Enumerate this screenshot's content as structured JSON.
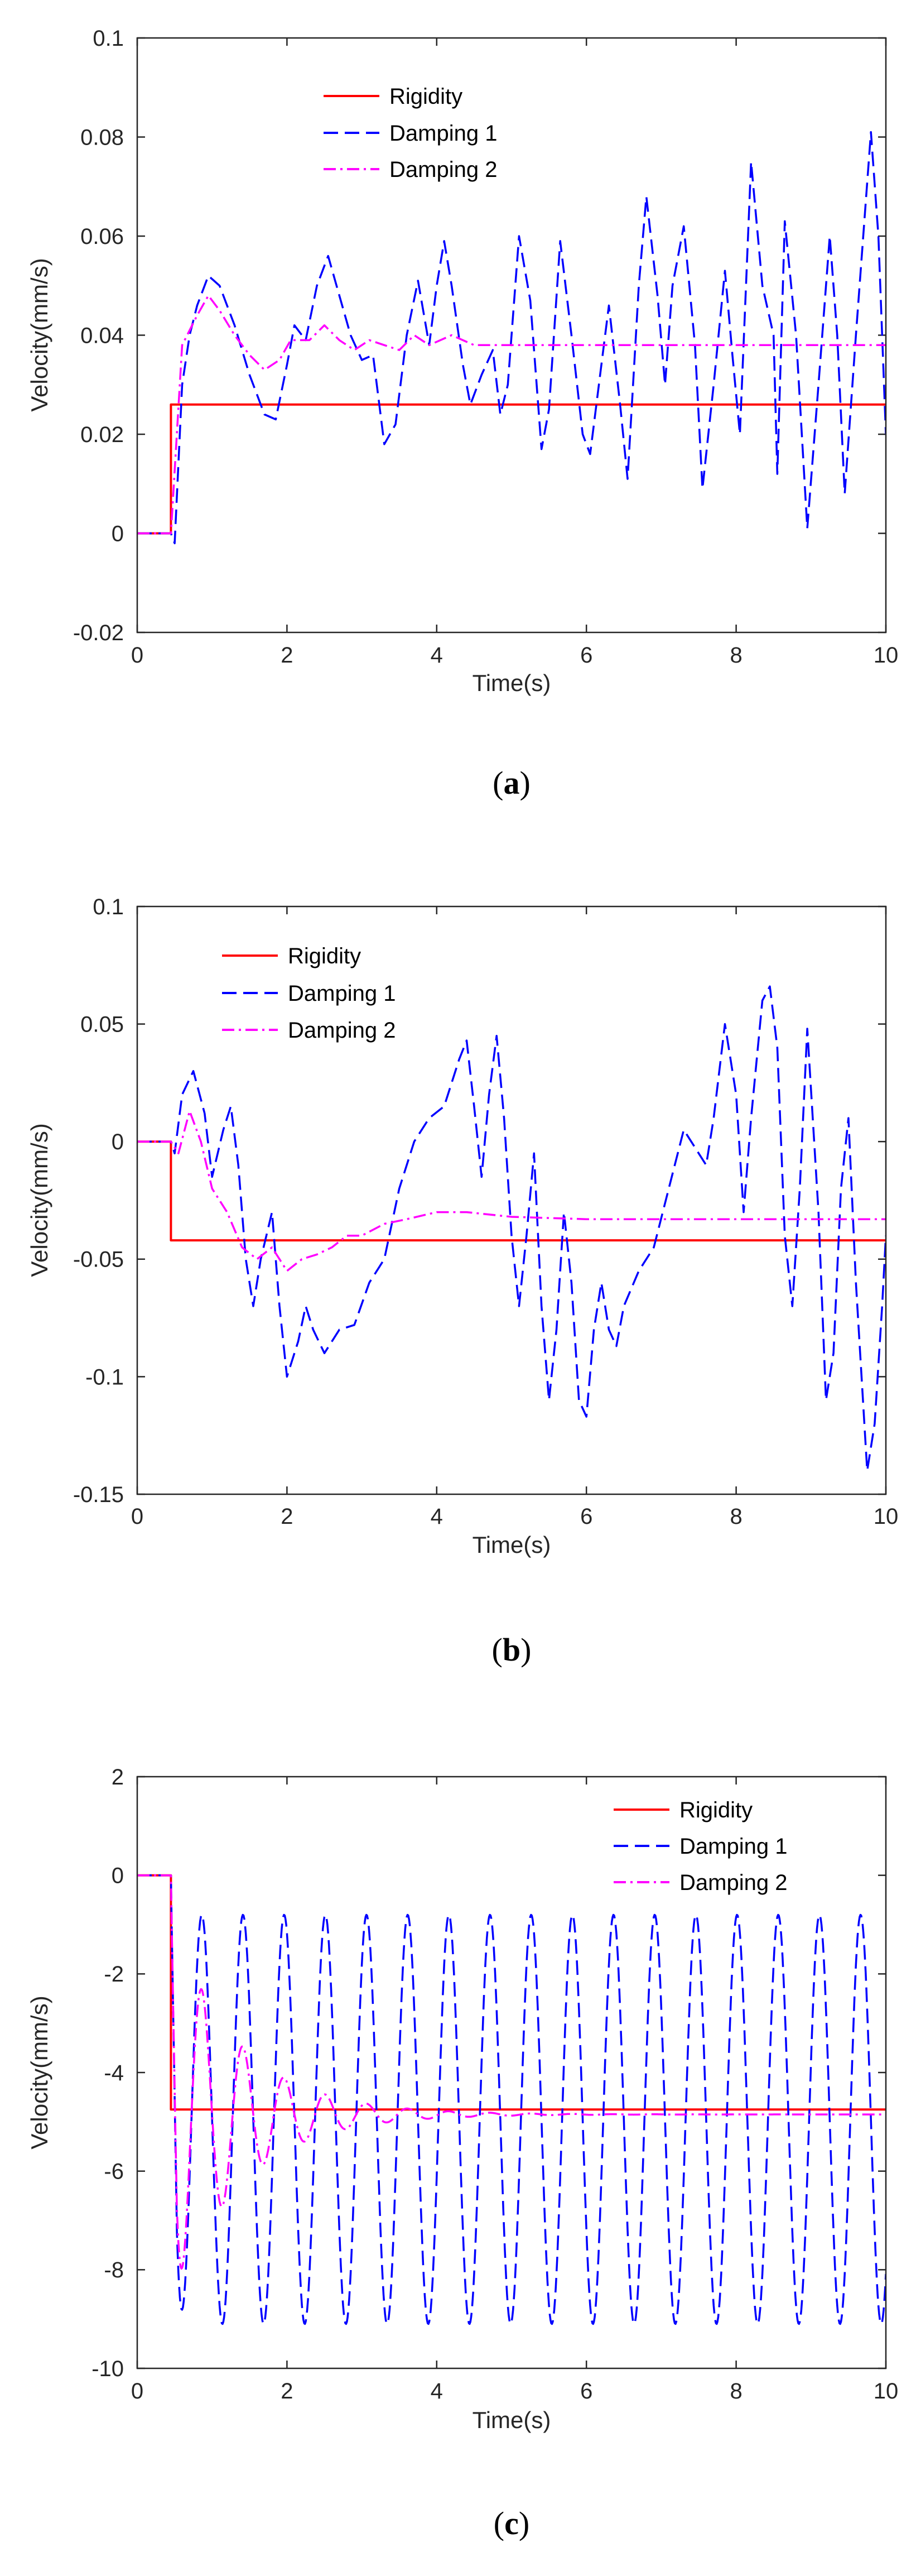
{
  "colors": {
    "rigidity": "#ff0000",
    "damping1": "#0000ff",
    "damping2": "#ff00ff",
    "axis": "#262626"
  },
  "chart_data": [
    {
      "type": "line",
      "caption": "a",
      "xlabel": "Time(s)",
      "ylabel": "Velocity(mm/s)",
      "xlim": [
        0,
        10
      ],
      "ylim": [
        -0.02,
        0.1
      ],
      "xticks": [
        0,
        2,
        4,
        6,
        8,
        10
      ],
      "yticks": [
        -0.02,
        0,
        0.02,
        0.04,
        0.06,
        0.08,
        0.1
      ],
      "xtick_labels": [
        "0",
        "2",
        "4",
        "6",
        "8",
        "10"
      ],
      "ytick_labels": [
        "-0.02",
        "0",
        "0.02",
        "0.04",
        "0.06",
        "0.08",
        "0.1"
      ],
      "legend_position": "top-left",
      "series": [
        {
          "name": "Rigidity",
          "style": "solid",
          "color_key": "rigidity",
          "points": [
            [
              0,
              0
            ],
            [
              0.45,
              0
            ],
            [
              0.45,
              0.026
            ],
            [
              10,
              0.026
            ]
          ]
        },
        {
          "name": "Damping 1",
          "style": "dashed",
          "color_key": "damping1",
          "points": [
            [
              0,
              0
            ],
            [
              0.45,
              0
            ],
            [
              0.5,
              -0.002
            ],
            [
              0.6,
              0.03
            ],
            [
              0.7,
              0.04
            ],
            [
              0.8,
              0.046
            ],
            [
              0.95,
              0.052
            ],
            [
              1.1,
              0.05
            ],
            [
              1.3,
              0.042
            ],
            [
              1.5,
              0.032
            ],
            [
              1.7,
              0.024
            ],
            [
              1.85,
              0.023
            ],
            [
              2.0,
              0.034
            ],
            [
              2.1,
              0.042
            ],
            [
              2.25,
              0.039
            ],
            [
              2.4,
              0.05
            ],
            [
              2.55,
              0.056
            ],
            [
              2.7,
              0.048
            ],
            [
              2.85,
              0.04
            ],
            [
              3.0,
              0.035
            ],
            [
              3.15,
              0.036
            ],
            [
              3.3,
              0.018
            ],
            [
              3.45,
              0.022
            ],
            [
              3.6,
              0.04
            ],
            [
              3.75,
              0.051
            ],
            [
              3.9,
              0.038
            ],
            [
              4.0,
              0.05
            ],
            [
              4.1,
              0.059
            ],
            [
              4.2,
              0.05
            ],
            [
              4.35,
              0.034
            ],
            [
              4.45,
              0.026
            ],
            [
              4.6,
              0.032
            ],
            [
              4.75,
              0.037
            ],
            [
              4.85,
              0.024
            ],
            [
              4.95,
              0.03
            ],
            [
              5.1,
              0.06
            ],
            [
              5.25,
              0.047
            ],
            [
              5.4,
              0.017
            ],
            [
              5.5,
              0.025
            ],
            [
              5.65,
              0.059
            ],
            [
              5.8,
              0.04
            ],
            [
              5.95,
              0.02
            ],
            [
              6.05,
              0.016
            ],
            [
              6.2,
              0.034
            ],
            [
              6.3,
              0.046
            ],
            [
              6.45,
              0.026
            ],
            [
              6.55,
              0.011
            ],
            [
              6.7,
              0.05
            ],
            [
              6.8,
              0.068
            ],
            [
              6.95,
              0.048
            ],
            [
              7.05,
              0.03
            ],
            [
              7.15,
              0.05
            ],
            [
              7.3,
              0.062
            ],
            [
              7.45,
              0.038
            ],
            [
              7.55,
              0.009
            ],
            [
              7.7,
              0.03
            ],
            [
              7.85,
              0.053
            ],
            [
              7.95,
              0.036
            ],
            [
              8.05,
              0.02
            ],
            [
              8.2,
              0.075
            ],
            [
              8.35,
              0.05
            ],
            [
              8.5,
              0.04
            ],
            [
              8.55,
              0.012
            ],
            [
              8.65,
              0.063
            ],
            [
              8.8,
              0.04
            ],
            [
              8.95,
              0.001
            ],
            [
              9.1,
              0.03
            ],
            [
              9.25,
              0.06
            ],
            [
              9.35,
              0.04
            ],
            [
              9.45,
              0.008
            ],
            [
              9.6,
              0.04
            ],
            [
              9.8,
              0.081
            ],
            [
              9.9,
              0.06
            ],
            [
              10,
              0.02
            ]
          ]
        },
        {
          "name": "Damping 2",
          "style": "dashdot",
          "color_key": "damping2",
          "points": [
            [
              0,
              0
            ],
            [
              0.45,
              0
            ],
            [
              0.6,
              0.038
            ],
            [
              0.8,
              0.044
            ],
            [
              0.95,
              0.048
            ],
            [
              1.1,
              0.045
            ],
            [
              1.3,
              0.04
            ],
            [
              1.5,
              0.036
            ],
            [
              1.7,
              0.033
            ],
            [
              1.9,
              0.035
            ],
            [
              2.05,
              0.039
            ],
            [
              2.3,
              0.039
            ],
            [
              2.5,
              0.042
            ],
            [
              2.7,
              0.039
            ],
            [
              2.9,
              0.037
            ],
            [
              3.1,
              0.039
            ],
            [
              3.3,
              0.038
            ],
            [
              3.5,
              0.037
            ],
            [
              3.7,
              0.04
            ],
            [
              3.9,
              0.038
            ],
            [
              4.2,
              0.04
            ],
            [
              4.5,
              0.038
            ],
            [
              5.0,
              0.038
            ],
            [
              6.0,
              0.038
            ],
            [
              7.0,
              0.038
            ],
            [
              8.0,
              0.038
            ],
            [
              9.0,
              0.038
            ],
            [
              10,
              0.038
            ]
          ]
        }
      ]
    },
    {
      "type": "line",
      "caption": "b",
      "xlabel": "Time(s)",
      "ylabel": "Velocity(mm/s)",
      "xlim": [
        0,
        10
      ],
      "ylim": [
        -0.15,
        0.1
      ],
      "xticks": [
        0,
        2,
        4,
        6,
        8,
        10
      ],
      "yticks": [
        -0.15,
        -0.1,
        -0.05,
        0,
        0.05,
        0.1
      ],
      "xtick_labels": [
        "0",
        "2",
        "4",
        "6",
        "8",
        "10"
      ],
      "ytick_labels": [
        "-0.15",
        "-0.1",
        "-0.05",
        "0",
        "0.05",
        "0.1"
      ],
      "legend_position": "top-left",
      "series": [
        {
          "name": "Rigidity",
          "style": "solid",
          "color_key": "rigidity",
          "points": [
            [
              0,
              0
            ],
            [
              0.45,
              0
            ],
            [
              0.45,
              -0.042
            ],
            [
              10,
              -0.042
            ]
          ]
        },
        {
          "name": "Damping 1",
          "style": "dashed",
          "color_key": "damping1",
          "points": [
            [
              0,
              0
            ],
            [
              0.45,
              0
            ],
            [
              0.5,
              -0.005
            ],
            [
              0.6,
              0.02
            ],
            [
              0.75,
              0.03
            ],
            [
              0.9,
              0.012
            ],
            [
              1.0,
              -0.015
            ],
            [
              1.15,
              0.005
            ],
            [
              1.25,
              0.015
            ],
            [
              1.35,
              -0.01
            ],
            [
              1.45,
              -0.05
            ],
            [
              1.55,
              -0.07
            ],
            [
              1.65,
              -0.05
            ],
            [
              1.8,
              -0.03
            ],
            [
              1.9,
              -0.07
            ],
            [
              2.0,
              -0.1
            ],
            [
              2.15,
              -0.085
            ],
            [
              2.25,
              -0.07
            ],
            [
              2.35,
              -0.08
            ],
            [
              2.5,
              -0.09
            ],
            [
              2.7,
              -0.08
            ],
            [
              2.9,
              -0.078
            ],
            [
              3.1,
              -0.06
            ],
            [
              3.3,
              -0.05
            ],
            [
              3.5,
              -0.02
            ],
            [
              3.7,
              0.0
            ],
            [
              3.9,
              0.01
            ],
            [
              4.1,
              0.015
            ],
            [
              4.3,
              0.035
            ],
            [
              4.4,
              0.043
            ],
            [
              4.5,
              0.015
            ],
            [
              4.6,
              -0.015
            ],
            [
              4.7,
              0.02
            ],
            [
              4.8,
              0.045
            ],
            [
              4.9,
              0.01
            ],
            [
              5.0,
              -0.04
            ],
            [
              5.1,
              -0.07
            ],
            [
              5.2,
              -0.04
            ],
            [
              5.3,
              -0.005
            ],
            [
              5.4,
              -0.07
            ],
            [
              5.5,
              -0.11
            ],
            [
              5.6,
              -0.08
            ],
            [
              5.7,
              -0.03
            ],
            [
              5.8,
              -0.06
            ],
            [
              5.9,
              -0.11
            ],
            [
              6.0,
              -0.117
            ],
            [
              6.1,
              -0.08
            ],
            [
              6.2,
              -0.06
            ],
            [
              6.3,
              -0.08
            ],
            [
              6.4,
              -0.087
            ],
            [
              6.5,
              -0.07
            ],
            [
              6.7,
              -0.055
            ],
            [
              6.9,
              -0.045
            ],
            [
              7.1,
              -0.02
            ],
            [
              7.3,
              0.005
            ],
            [
              7.5,
              -0.005
            ],
            [
              7.6,
              -0.01
            ],
            [
              7.7,
              0.01
            ],
            [
              7.85,
              0.05
            ],
            [
              8.0,
              0.02
            ],
            [
              8.1,
              -0.03
            ],
            [
              8.2,
              0.01
            ],
            [
              8.35,
              0.06
            ],
            [
              8.45,
              0.066
            ],
            [
              8.55,
              0.04
            ],
            [
              8.65,
              -0.04
            ],
            [
              8.75,
              -0.07
            ],
            [
              8.85,
              -0.02
            ],
            [
              8.95,
              0.048
            ],
            [
              9.1,
              -0.03
            ],
            [
              9.2,
              -0.11
            ],
            [
              9.3,
              -0.09
            ],
            [
              9.4,
              -0.02
            ],
            [
              9.5,
              0.01
            ],
            [
              9.6,
              -0.06
            ],
            [
              9.75,
              -0.14
            ],
            [
              9.85,
              -0.12
            ],
            [
              9.95,
              -0.07
            ],
            [
              10,
              -0.04
            ]
          ]
        },
        {
          "name": "Damping 2",
          "style": "dashdot",
          "color_key": "damping2",
          "points": [
            [
              0,
              0
            ],
            [
              0.45,
              0
            ],
            [
              0.55,
              -0.005
            ],
            [
              0.7,
              0.013
            ],
            [
              0.85,
              0.0
            ],
            [
              1.0,
              -0.02
            ],
            [
              1.2,
              -0.03
            ],
            [
              1.4,
              -0.045
            ],
            [
              1.6,
              -0.05
            ],
            [
              1.8,
              -0.045
            ],
            [
              2.0,
              -0.055
            ],
            [
              2.2,
              -0.05
            ],
            [
              2.4,
              -0.048
            ],
            [
              2.6,
              -0.045
            ],
            [
              2.8,
              -0.04
            ],
            [
              3.0,
              -0.04
            ],
            [
              3.3,
              -0.035
            ],
            [
              3.6,
              -0.033
            ],
            [
              4.0,
              -0.03
            ],
            [
              4.4,
              -0.03
            ],
            [
              5.0,
              -0.032
            ],
            [
              6.0,
              -0.033
            ],
            [
              7.0,
              -0.033
            ],
            [
              8.0,
              -0.033
            ],
            [
              9.0,
              -0.033
            ],
            [
              10,
              -0.033
            ]
          ]
        }
      ]
    },
    {
      "type": "line",
      "caption": "c",
      "xlabel": "Time(s)",
      "ylabel": "Velocity(mm/s)",
      "xlim": [
        0,
        10
      ],
      "ylim": [
        -10,
        2
      ],
      "xticks": [
        0,
        2,
        4,
        6,
        8,
        10
      ],
      "yticks": [
        -10,
        -8,
        -6,
        -4,
        -2,
        0,
        2
      ],
      "xtick_labels": [
        "0",
        "2",
        "4",
        "6",
        "8",
        "10"
      ],
      "ytick_labels": [
        "-10",
        "-8",
        "-6",
        "-4",
        "-2",
        "0",
        "2"
      ],
      "legend_position": "top-right",
      "series": [
        {
          "name": "Rigidity",
          "style": "solid",
          "color_key": "rigidity",
          "points": [
            [
              0,
              0
            ],
            [
              0.45,
              0
            ],
            [
              0.45,
              -4.75
            ],
            [
              10,
              -4.75
            ]
          ]
        },
        {
          "name": "Damping 1",
          "style": "sine",
          "color_key": "damping1",
          "start": 0.45,
          "baseline": -4.95,
          "amplitude": 4.15,
          "period": 0.55,
          "phase_sign": -1
        },
        {
          "name": "Damping 2",
          "style": "decay",
          "color_key": "damping2",
          "start": 0.45,
          "baseline": -4.85,
          "amplitude": 4.0,
          "period": 0.55,
          "decay_time": 0.9,
          "phase_sign": -1
        }
      ]
    }
  ]
}
